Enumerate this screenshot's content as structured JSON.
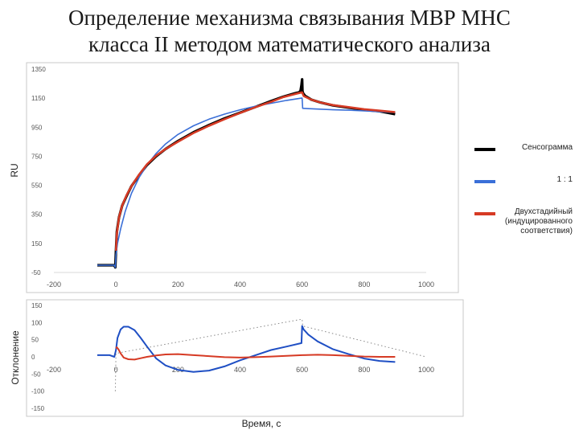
{
  "title": {
    "line1": "Определение механизма связывания МВР МНС",
    "line2": "класса II методом математического анализа"
  },
  "colors": {
    "sensogram": "#000000",
    "model_1_1": "#3a6fd8",
    "two_step": "#d63a24",
    "frame": "#c8c8c8",
    "tick": "#555555"
  },
  "legend": [
    {
      "label": "Сенсограмма",
      "color": "#000000"
    },
    {
      "label": "1 : 1",
      "color": "#3a6fd8"
    },
    {
      "label": "Двухстадийный\n(индуцированного\nсоответствия)",
      "color": "#d63a24"
    }
  ],
  "chart_data": [
    {
      "type": "line",
      "ylabel": "RU",
      "xlabel": "",
      "xlim": [
        -200,
        1000
      ],
      "ylim": [
        -50,
        1350
      ],
      "xticks": [
        -200,
        0,
        200,
        400,
        600,
        800,
        1000
      ],
      "yticks": [
        -50,
        150,
        350,
        550,
        750,
        950,
        1150,
        1350
      ],
      "legend_position": "right",
      "series": [
        {
          "name": "Сенсограмма",
          "color": "#000000",
          "x": [
            -60,
            -5,
            -2,
            0,
            3,
            10,
            20,
            35,
            50,
            75,
            100,
            130,
            160,
            200,
            250,
            300,
            350,
            400,
            450,
            500,
            540,
            580,
            590,
            595,
            598,
            600,
            601,
            603,
            610,
            630,
            660,
            700,
            750,
            800,
            850,
            900
          ],
          "y": [
            0,
            0,
            -15,
            100,
            230,
            330,
            410,
            480,
            545,
            620,
            690,
            750,
            800,
            855,
            915,
            965,
            1010,
            1050,
            1090,
            1130,
            1160,
            1185,
            1190,
            1200,
            1240,
            1280,
            1200,
            1185,
            1165,
            1140,
            1120,
            1100,
            1085,
            1070,
            1060,
            1040
          ]
        },
        {
          "name": "1 : 1",
          "color": "#3a6fd8",
          "x": [
            -60,
            -5,
            -2,
            0,
            5,
            15,
            30,
            50,
            75,
            100,
            130,
            160,
            200,
            250,
            300,
            350,
            400,
            450,
            500,
            550,
            598,
            600,
            602,
            650,
            700,
            750,
            800,
            850,
            900
          ],
          "y": [
            0,
            0,
            -15,
            70,
            150,
            250,
            370,
            495,
            605,
            690,
            770,
            835,
            900,
            960,
            1005,
            1040,
            1070,
            1095,
            1115,
            1135,
            1150,
            1150,
            1080,
            1075,
            1070,
            1067,
            1062,
            1057,
            1052
          ]
        },
        {
          "name": "Двухстадийный (индуцированного соответствия)",
          "color": "#d63a24",
          "x": [
            0,
            3,
            10,
            20,
            35,
            50,
            75,
            100,
            130,
            160,
            200,
            250,
            300,
            350,
            400,
            450,
            500,
            540,
            580,
            600,
            605,
            630,
            660,
            700,
            750,
            800,
            850,
            900
          ],
          "y": [
            100,
            220,
            330,
            410,
            485,
            545,
            625,
            695,
            755,
            800,
            850,
            910,
            960,
            1005,
            1048,
            1088,
            1125,
            1158,
            1180,
            1190,
            1165,
            1140,
            1120,
            1102,
            1088,
            1074,
            1064,
            1054
          ]
        }
      ]
    },
    {
      "type": "line",
      "ylabel": "Отклонение",
      "xlabel": "Время, с",
      "xlim": [
        -200,
        1000
      ],
      "ylim": [
        -150,
        150
      ],
      "xticks": [
        -200,
        0,
        200,
        400,
        600,
        800,
        1000
      ],
      "yticks": [
        -150,
        -100,
        -50,
        0,
        50,
        100,
        150
      ],
      "series": [
        {
          "name": "1 : 1",
          "color": "#1f4fc4",
          "x": [
            -60,
            -20,
            -5,
            0,
            5,
            15,
            25,
            40,
            60,
            80,
            100,
            130,
            160,
            200,
            250,
            300,
            350,
            400,
            450,
            500,
            550,
            598,
            600,
            605,
            620,
            650,
            700,
            750,
            800,
            850,
            900
          ],
          "y": [
            5,
            5,
            0,
            20,
            55,
            80,
            88,
            88,
            78,
            55,
            30,
            -5,
            -25,
            -38,
            -44,
            -40,
            -28,
            -10,
            5,
            20,
            30,
            40,
            90,
            80,
            65,
            45,
            22,
            8,
            -5,
            -12,
            -15
          ]
        },
        {
          "name": "Двухстадийный (индуцированного соответствия)",
          "color": "#d63a24",
          "x": [
            0,
            3,
            8,
            15,
            25,
            40,
            60,
            80,
            100,
            130,
            160,
            200,
            250,
            300,
            350,
            400,
            450,
            500,
            550,
            600,
            650,
            700,
            750,
            800,
            850,
            900
          ],
          "y": [
            25,
            28,
            22,
            10,
            -2,
            -7,
            -8,
            -4,
            0,
            4,
            7,
            8,
            5,
            2,
            -1,
            -2,
            -1,
            1,
            3,
            5,
            6,
            5,
            3,
            1,
            0,
            0
          ]
        },
        {
          "name": "Сенсограмма",
          "color": "#555555",
          "x": [
            -2,
            0,
            600,
            602,
            1000
          ],
          "y": [
            -100,
            10,
            110,
            90,
            0
          ]
        }
      ]
    }
  ]
}
